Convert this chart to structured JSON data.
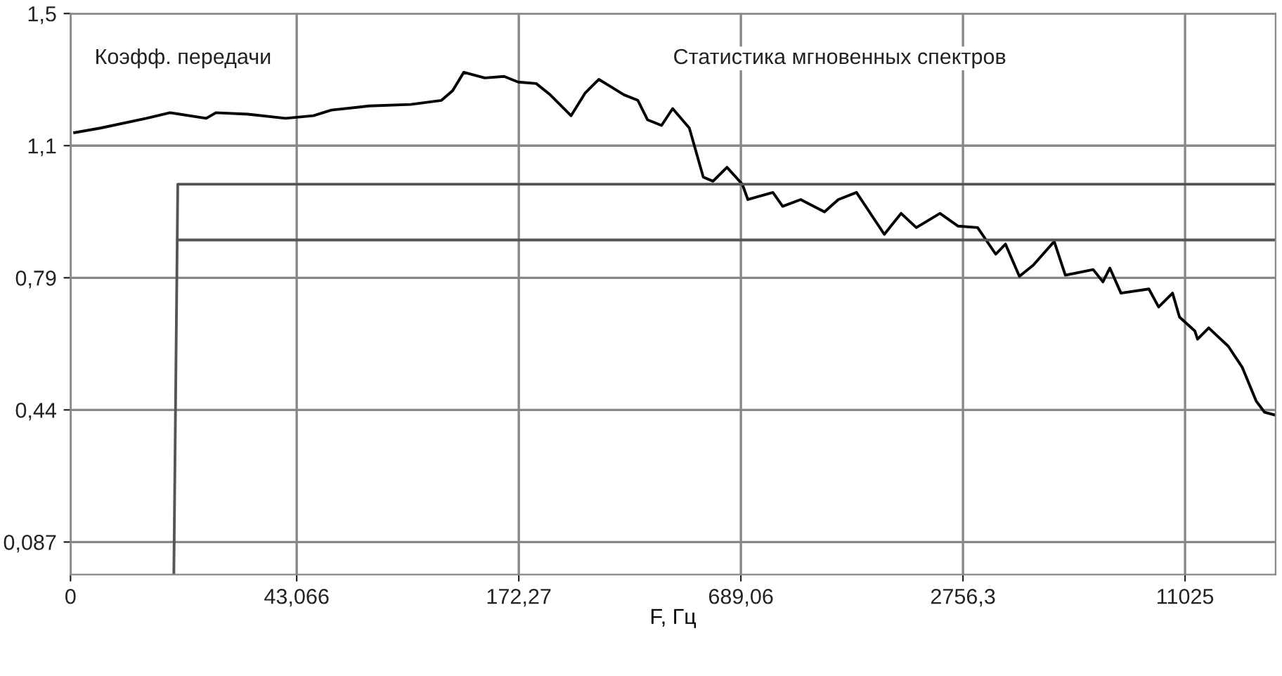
{
  "chart_data": {
    "type": "line",
    "xlabel": "F, Гц",
    "annotations": [
      "Коэфф. передачи",
      "Статистика мгновенных спектров"
    ],
    "log": "x",
    "xlim": [
      0,
      19400
    ],
    "xticks": [
      0,
      {
        "value": 43.066,
        "label": "43,066"
      },
      {
        "value": 172.27,
        "label": "172,27"
      },
      {
        "value": 689.06,
        "label": "689,06"
      },
      {
        "value": 2756.3,
        "label": "2756,3"
      },
      {
        "value": 11025,
        "label": "11025"
      }
    ],
    "ylim": [
      0,
      1.499
    ],
    "yticks": [
      {
        "value": 0.087,
        "label": "0,087"
      },
      {
        "value": 0.44,
        "label": "0,44"
      },
      {
        "value": 0.793,
        "label": "0,79"
      },
      {
        "value": 1.146,
        "label": "1,1"
      },
      {
        "value": 1.499,
        "label": "1,5"
      }
    ],
    "grid": true,
    "legend": false,
    "marker": "none",
    "line_style": "solid",
    "series": [
      {
        "color": "#000000",
        "x": [
          10.77,
          12.65,
          16.85,
          19.53,
          24.48,
          26.02,
          31.77,
          40.18,
          47.8,
          53.5,
          67.7,
          87.8,
          106.3,
          114.0,
          122.2,
          139.3,
          157.2,
          171.5,
          192.0,
          209.5,
          238.7,
          260.4,
          284.0,
          304.4,
          332.0,
          362.2,
          384.9,
          419.9,
          450.1,
          499.5,
          544.9,
          579.0,
          631.8,
          695.2,
          719.8,
          841.6,
          894.4,
          1001,
          1161,
          1266,
          1418,
          1687,
          1873,
          2060,
          2388,
          2674,
          3020,
          3382,
          3594,
          3920,
          4276,
          4871,
          5222,
          6214,
          6602,
          6896,
          7390,
          8798,
          9348,
          10197,
          10650,
          11720,
          11920,
          12780,
          14440,
          15750,
          17180,
          18100,
          19230
        ],
        "values": [
          1.181,
          1.193,
          1.219,
          1.234,
          1.219,
          1.234,
          1.23,
          1.219,
          1.226,
          1.241,
          1.252,
          1.256,
          1.267,
          1.293,
          1.342,
          1.327,
          1.331,
          1.316,
          1.312,
          1.282,
          1.226,
          1.286,
          1.323,
          1.305,
          1.282,
          1.267,
          1.215,
          1.2,
          1.245,
          1.193,
          1.062,
          1.051,
          1.088,
          1.043,
          1.002,
          1.021,
          0.984,
          1.002,
          0.969,
          1.002,
          1.021,
          0.909,
          0.965,
          0.927,
          0.965,
          0.931,
          0.927,
          0.856,
          0.883,
          0.797,
          0.827,
          0.89,
          0.8,
          0.815,
          0.782,
          0.819,
          0.752,
          0.763,
          0.715,
          0.752,
          0.688,
          0.651,
          0.629,
          0.659,
          0.61,
          0.554,
          0.464,
          0.434,
          0.427
        ]
      },
      {
        "color": "#555555",
        "x": [
          20.0,
          20.5,
          19400
        ],
        "values": [
          0,
          1.043,
          1.043
        ]
      },
      {
        "color": "#555555",
        "x": [
          20.5,
          19400
        ],
        "values": [
          0.894,
          0.894
        ]
      }
    ]
  }
}
